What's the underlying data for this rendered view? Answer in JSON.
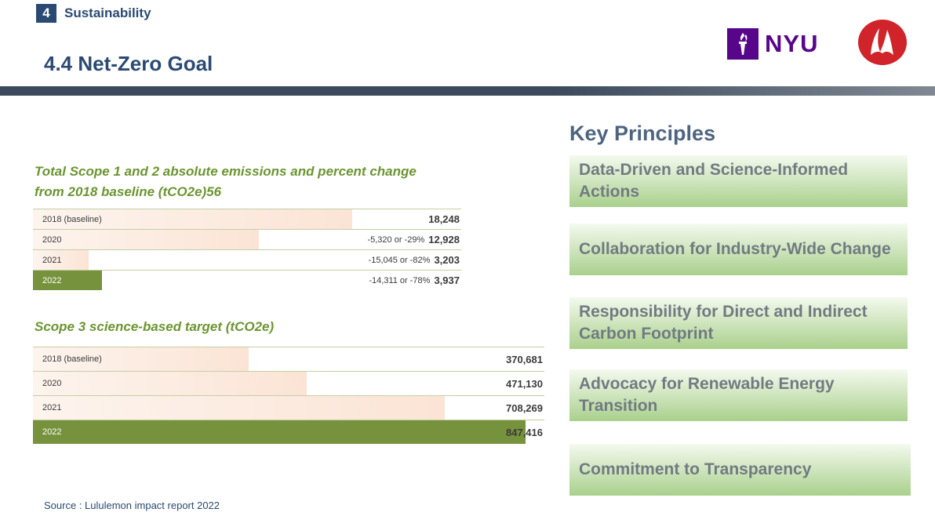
{
  "header": {
    "section_number": "4",
    "section_title": "Sustainability",
    "page_title": "4.4 Net-Zero Goal",
    "logos": {
      "nyu": "NYU",
      "lululemon": "lululemon-logo"
    }
  },
  "chart_data": [
    {
      "type": "bar",
      "orientation": "horizontal",
      "title": "Total Scope 1 and 2 absolute emissions and percent change from 2018 baseline (tCO2e)56",
      "categories": [
        "2018 (baseline)",
        "2020",
        "2021",
        "2022"
      ],
      "values": [
        18248,
        12928,
        3203,
        3937
      ],
      "value_labels": [
        "18,248",
        "12,928",
        "3,203",
        "3,937"
      ],
      "change_labels": [
        "",
        "-5,320 or -29%",
        "-15,045 or -82%",
        "-14,311 or -78%"
      ],
      "highlight_index": 3,
      "xlim": [
        0,
        24500
      ]
    },
    {
      "type": "bar",
      "orientation": "horizontal",
      "title": "Scope 3 science-based target (tCO2e)",
      "categories": [
        "2018 (baseline)",
        "2020",
        "2021",
        "2022"
      ],
      "values": [
        370681,
        471130,
        708269,
        847416
      ],
      "value_labels": [
        "370,681",
        "471,130",
        "708,269",
        "847,416"
      ],
      "highlight_index": 3,
      "xlim": [
        0,
        880000
      ]
    }
  ],
  "source": "Source : Lululemon impact report 2022",
  "key_principles": {
    "heading": "Key Principles",
    "items": [
      "Data-Driven and Science-Informed Actions",
      "Collaboration for Industry-Wide Change",
      "Responsibility for Direct and Indirect Carbon Footprint",
      "Advocacy for Renewable Energy Transition",
      "Commitment to Transparency"
    ]
  },
  "colors": {
    "navy": "#2b4a73",
    "green": "#76923c",
    "title_green": "#6b9530",
    "peach": "#fbe4d5"
  }
}
